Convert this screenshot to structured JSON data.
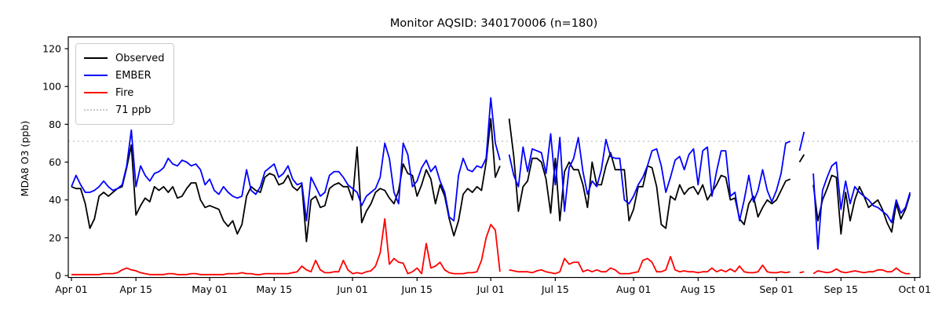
{
  "chart_data": {
    "type": "line",
    "title": "Monitor AQSID: 340170006 (n=180)",
    "ylabel": "MDA8 O3 (ppb)",
    "xlabel": "",
    "grid": false,
    "legend_position": "upper-left",
    "ylim": [
      0,
      125
    ],
    "y_ticks": [
      0,
      20,
      40,
      60,
      80,
      100,
      120
    ],
    "x_ticks": [
      {
        "label": "Apr 01",
        "day": 0
      },
      {
        "label": "Apr 15",
        "day": 14
      },
      {
        "label": "May 01",
        "day": 30
      },
      {
        "label": "May 15",
        "day": 44
      },
      {
        "label": "Jun 01",
        "day": 61
      },
      {
        "label": "Jun 15",
        "day": 75
      },
      {
        "label": "Jul 01",
        "day": 91
      },
      {
        "label": "Jul 15",
        "day": 105
      },
      {
        "label": "Aug 01",
        "day": 122
      },
      {
        "label": "Aug 15",
        "day": 136
      },
      {
        "label": "Sep 01",
        "day": 153
      },
      {
        "label": "Sep 15",
        "day": 167
      },
      {
        "label": "Oct 01",
        "day": 183
      }
    ],
    "threshold": {
      "label": "71 ppb",
      "value": 71,
      "color": "#c8c8c8",
      "style": "dotted"
    },
    "x_start": "Apr 01",
    "x_end": "Sep 30",
    "n_points": 180,
    "missing_days": [
      "Jul 04",
      "Sep 05",
      "Sep 08"
    ],
    "series": [
      {
        "name": "Observed",
        "color": "#000000",
        "values": [
          47,
          46,
          46,
          38,
          25,
          30,
          42,
          44,
          42,
          44,
          46,
          47,
          57,
          69,
          32,
          37,
          41,
          39,
          47,
          45,
          47,
          44,
          47,
          41,
          42,
          46,
          49,
          49,
          40,
          36,
          37,
          36,
          35,
          29,
          26,
          29,
          22,
          27,
          42,
          47,
          45,
          44,
          52,
          54,
          53,
          48,
          49,
          53,
          47,
          45,
          48,
          18,
          40,
          42,
          36,
          37,
          46,
          48,
          49,
          47,
          47,
          40,
          68,
          28,
          34,
          38,
          44,
          46,
          45,
          41,
          38,
          45,
          59,
          54,
          53,
          42,
          48,
          56,
          51,
          38,
          48,
          42,
          30,
          21,
          29,
          43,
          46,
          44,
          47,
          45,
          60,
          83,
          52,
          58,
          null,
          83,
          63,
          34,
          47,
          50,
          62,
          62,
          60,
          51,
          33,
          62,
          29,
          55,
          60,
          56,
          56,
          48,
          36,
          60,
          48,
          48,
          58,
          65,
          56,
          56,
          56,
          29,
          35,
          47,
          47,
          58,
          57,
          47,
          27,
          25,
          42,
          40,
          48,
          43,
          46,
          47,
          43,
          48,
          40,
          44,
          48,
          53,
          52,
          40,
          41,
          30,
          27,
          38,
          42,
          31,
          36,
          40,
          38,
          40,
          45,
          50,
          51,
          null,
          60,
          64,
          null,
          48,
          29,
          40,
          46,
          53,
          52,
          22,
          44,
          29,
          40,
          47,
          42,
          36,
          38,
          40,
          35,
          28,
          23,
          38,
          30,
          35,
          43
        ]
      },
      {
        "name": "EMBER",
        "color": "#0000ff",
        "values": [
          47,
          53,
          48,
          44,
          44,
          45,
          47,
          50,
          47,
          45,
          46,
          48,
          58,
          77,
          47,
          58,
          53,
          50,
          54,
          55,
          57,
          62,
          59,
          58,
          61,
          60,
          58,
          59,
          56,
          48,
          51,
          45,
          43,
          47,
          44,
          42,
          41,
          42,
          56,
          45,
          43,
          47,
          55,
          57,
          59,
          52,
          54,
          58,
          51,
          48,
          49,
          29,
          52,
          47,
          42,
          44,
          53,
          55,
          55,
          52,
          48,
          46,
          44,
          37,
          42,
          44,
          46,
          52,
          70,
          62,
          44,
          38,
          70,
          64,
          47,
          50,
          57,
          61,
          55,
          58,
          50,
          44,
          31,
          29,
          53,
          62,
          56,
          55,
          58,
          57,
          62,
          94,
          70,
          61,
          null,
          64,
          53,
          47,
          68,
          55,
          67,
          66,
          65,
          54,
          75,
          48,
          73,
          34,
          57,
          62,
          73,
          55,
          43,
          50,
          47,
          56,
          72,
          63,
          62,
          62,
          40,
          38,
          42,
          48,
          52,
          58,
          66,
          67,
          58,
          44,
          52,
          61,
          63,
          56,
          64,
          67,
          48,
          66,
          68,
          42,
          55,
          66,
          66,
          42,
          44,
          29,
          40,
          53,
          39,
          45,
          56,
          45,
          39,
          45,
          54,
          70,
          71,
          null,
          66,
          76,
          null,
          54,
          14,
          45,
          52,
          58,
          60,
          35,
          50,
          38,
          47,
          44,
          42,
          40,
          37,
          36,
          34,
          32,
          28,
          40,
          33,
          36,
          44
        ]
      },
      {
        "name": "Fire",
        "color": "#ff0000",
        "values": [
          0.5,
          0.5,
          0.5,
          0.5,
          0.5,
          0.5,
          0.5,
          1,
          1,
          1,
          1.5,
          3,
          4,
          3,
          2.5,
          1.5,
          1,
          0.5,
          0.5,
          0.5,
          0.5,
          1,
          1,
          0.5,
          0.5,
          0.5,
          1,
          1,
          0.5,
          0.5,
          0.5,
          0.5,
          0.5,
          0.5,
          1,
          1,
          1,
          1.5,
          1,
          1,
          0.5,
          0.5,
          1,
          1,
          1,
          1,
          1,
          1,
          1.5,
          2,
          5,
          3,
          2,
          8,
          3,
          1.5,
          1.5,
          2,
          2,
          8,
          3,
          1,
          1.5,
          1,
          2,
          2.5,
          5,
          12,
          30,
          6,
          9,
          7,
          6.5,
          1,
          2,
          4,
          1,
          17,
          4,
          5,
          7,
          3,
          1.5,
          1,
          1,
          1,
          1.5,
          1.5,
          2,
          8,
          20,
          27,
          24,
          2,
          null,
          3,
          2.5,
          2,
          2,
          2,
          1.5,
          2.5,
          3,
          2,
          1.5,
          1,
          2,
          9,
          6,
          7,
          7,
          2,
          3,
          2,
          3,
          2,
          2,
          4,
          3,
          1,
          1,
          1,
          1.5,
          2,
          8,
          9,
          7,
          2,
          2,
          3,
          10,
          3,
          2,
          2.5,
          2,
          2,
          1.5,
          2,
          2,
          4,
          2,
          3,
          2,
          3.5,
          2,
          5,
          2,
          1.5,
          1.5,
          2,
          5.5,
          2,
          1.5,
          1.5,
          2,
          1.5,
          2,
          null,
          1.5,
          2,
          null,
          1,
          2.5,
          2,
          1.5,
          2,
          3.5,
          2,
          1.5,
          2,
          2.5,
          2,
          1.5,
          2,
          2,
          3,
          3,
          2,
          2,
          4,
          2,
          1,
          1
        ]
      }
    ]
  }
}
